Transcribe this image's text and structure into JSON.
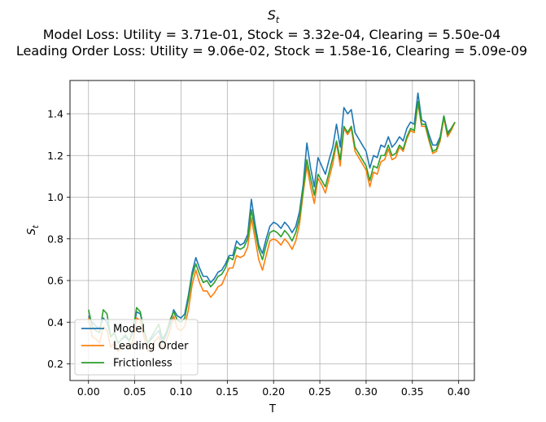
{
  "chart_data": {
    "type": "line",
    "title_symbol": "S",
    "title_subscript": "t",
    "subtitle_1": "Model Loss: Utility = 3.71e-01, Stock = 3.32e-04, Clearing = 5.50e-04",
    "subtitle_2": "Leading Order Loss: Utility = 9.06e-02, Stock = 1.58e-16, Clearing = 5.09e-09",
    "xlabel": "T",
    "ylabel_symbol": "S",
    "ylabel_subscript": "t",
    "xlim": [
      -0.02,
      0.417
    ],
    "ylim": [
      0.12,
      1.56
    ],
    "xticks": [
      0.0,
      0.05,
      0.1,
      0.15,
      0.2,
      0.25,
      0.3,
      0.35,
      0.4
    ],
    "xtick_labels": [
      "0.00",
      "0.05",
      "0.10",
      "0.15",
      "0.20",
      "0.25",
      "0.30",
      "0.35",
      "0.40"
    ],
    "yticks": [
      0.2,
      0.4,
      0.6,
      0.8,
      1.0,
      1.2,
      1.4
    ],
    "ytick_labels": [
      "0.2",
      "0.4",
      "0.6",
      "0.8",
      "1.0",
      "1.2",
      "1.4"
    ],
    "grid": true,
    "legend_position": "lower-left",
    "x": [
      0.0,
      0.004,
      0.008,
      0.012,
      0.016,
      0.02,
      0.024,
      0.028,
      0.032,
      0.036,
      0.04,
      0.044,
      0.048,
      0.052,
      0.056,
      0.06,
      0.064,
      0.068,
      0.072,
      0.076,
      0.08,
      0.084,
      0.088,
      0.092,
      0.096,
      0.1,
      0.104,
      0.108,
      0.112,
      0.116,
      0.12,
      0.124,
      0.128,
      0.132,
      0.136,
      0.14,
      0.144,
      0.148,
      0.152,
      0.156,
      0.16,
      0.164,
      0.168,
      0.172,
      0.176,
      0.18,
      0.184,
      0.188,
      0.192,
      0.196,
      0.2,
      0.204,
      0.208,
      0.212,
      0.216,
      0.22,
      0.224,
      0.228,
      0.232,
      0.236,
      0.24,
      0.244,
      0.248,
      0.252,
      0.256,
      0.26,
      0.264,
      0.268,
      0.272,
      0.276,
      0.28,
      0.284,
      0.288,
      0.292,
      0.296,
      0.3,
      0.304,
      0.308,
      0.312,
      0.316,
      0.32,
      0.324,
      0.328,
      0.332,
      0.336,
      0.34,
      0.344,
      0.348,
      0.352,
      0.356,
      0.36,
      0.364,
      0.368,
      0.372,
      0.376,
      0.38,
      0.384,
      0.388,
      0.392,
      0.396
    ],
    "series": [
      {
        "name": "Model",
        "color": "#1f77b4",
        "values": [
          0.43,
          0.4,
          0.38,
          0.37,
          0.42,
          0.4,
          0.33,
          0.35,
          0.3,
          0.32,
          0.33,
          0.31,
          0.35,
          0.45,
          0.44,
          0.36,
          0.3,
          0.32,
          0.34,
          0.36,
          0.3,
          0.34,
          0.39,
          0.46,
          0.43,
          0.42,
          0.44,
          0.53,
          0.64,
          0.71,
          0.66,
          0.62,
          0.62,
          0.59,
          0.61,
          0.64,
          0.65,
          0.68,
          0.72,
          0.72,
          0.79,
          0.77,
          0.78,
          0.82,
          0.99,
          0.87,
          0.77,
          0.73,
          0.8,
          0.86,
          0.88,
          0.87,
          0.85,
          0.88,
          0.86,
          0.83,
          0.86,
          0.93,
          1.06,
          1.26,
          1.14,
          1.05,
          1.19,
          1.15,
          1.11,
          1.18,
          1.24,
          1.35,
          1.24,
          1.43,
          1.4,
          1.42,
          1.31,
          1.28,
          1.25,
          1.22,
          1.14,
          1.2,
          1.19,
          1.25,
          1.24,
          1.29,
          1.24,
          1.26,
          1.29,
          1.27,
          1.33,
          1.36,
          1.35,
          1.5,
          1.37,
          1.36,
          1.3,
          1.25,
          1.25,
          1.29,
          1.39,
          1.31,
          1.33,
          1.36
        ]
      },
      {
        "name": "Leading Order",
        "color": "#ff7f0e",
        "values": [
          0.42,
          0.33,
          0.32,
          0.3,
          0.38,
          0.36,
          0.28,
          0.3,
          0.26,
          0.28,
          0.29,
          0.27,
          0.31,
          0.42,
          0.41,
          0.33,
          0.26,
          0.28,
          0.31,
          0.33,
          0.27,
          0.31,
          0.36,
          0.43,
          0.37,
          0.36,
          0.38,
          0.46,
          0.58,
          0.65,
          0.59,
          0.55,
          0.55,
          0.52,
          0.54,
          0.57,
          0.58,
          0.62,
          0.66,
          0.66,
          0.72,
          0.71,
          0.72,
          0.76,
          0.9,
          0.8,
          0.7,
          0.65,
          0.72,
          0.79,
          0.8,
          0.79,
          0.77,
          0.8,
          0.78,
          0.75,
          0.79,
          0.87,
          1.02,
          1.15,
          1.05,
          0.97,
          1.09,
          1.06,
          1.02,
          1.09,
          1.16,
          1.26,
          1.15,
          1.33,
          1.3,
          1.33,
          1.22,
          1.19,
          1.16,
          1.13,
          1.05,
          1.12,
          1.11,
          1.17,
          1.18,
          1.23,
          1.18,
          1.19,
          1.24,
          1.22,
          1.28,
          1.32,
          1.31,
          1.45,
          1.34,
          1.34,
          1.27,
          1.21,
          1.22,
          1.27,
          1.38,
          1.29,
          1.32,
          1.36
        ]
      },
      {
        "name": "Frictionless",
        "color": "#2ca02c",
        "values": [
          0.46,
          0.38,
          0.36,
          0.35,
          0.46,
          0.44,
          0.33,
          0.35,
          0.3,
          0.32,
          0.34,
          0.31,
          0.36,
          0.47,
          0.45,
          0.36,
          0.3,
          0.33,
          0.36,
          0.39,
          0.32,
          0.35,
          0.41,
          0.45,
          0.41,
          0.4,
          0.42,
          0.51,
          0.62,
          0.68,
          0.63,
          0.59,
          0.6,
          0.57,
          0.59,
          0.62,
          0.63,
          0.66,
          0.71,
          0.7,
          0.76,
          0.75,
          0.76,
          0.8,
          0.94,
          0.84,
          0.75,
          0.7,
          0.77,
          0.83,
          0.84,
          0.83,
          0.81,
          0.84,
          0.82,
          0.79,
          0.83,
          0.9,
          1.04,
          1.18,
          1.09,
          1.01,
          1.11,
          1.08,
          1.05,
          1.12,
          1.19,
          1.27,
          1.18,
          1.34,
          1.31,
          1.34,
          1.24,
          1.21,
          1.18,
          1.15,
          1.08,
          1.15,
          1.14,
          1.2,
          1.2,
          1.25,
          1.2,
          1.21,
          1.25,
          1.23,
          1.29,
          1.33,
          1.32,
          1.46,
          1.35,
          1.35,
          1.28,
          1.22,
          1.23,
          1.28,
          1.39,
          1.3,
          1.33,
          1.36
        ]
      }
    ]
  }
}
